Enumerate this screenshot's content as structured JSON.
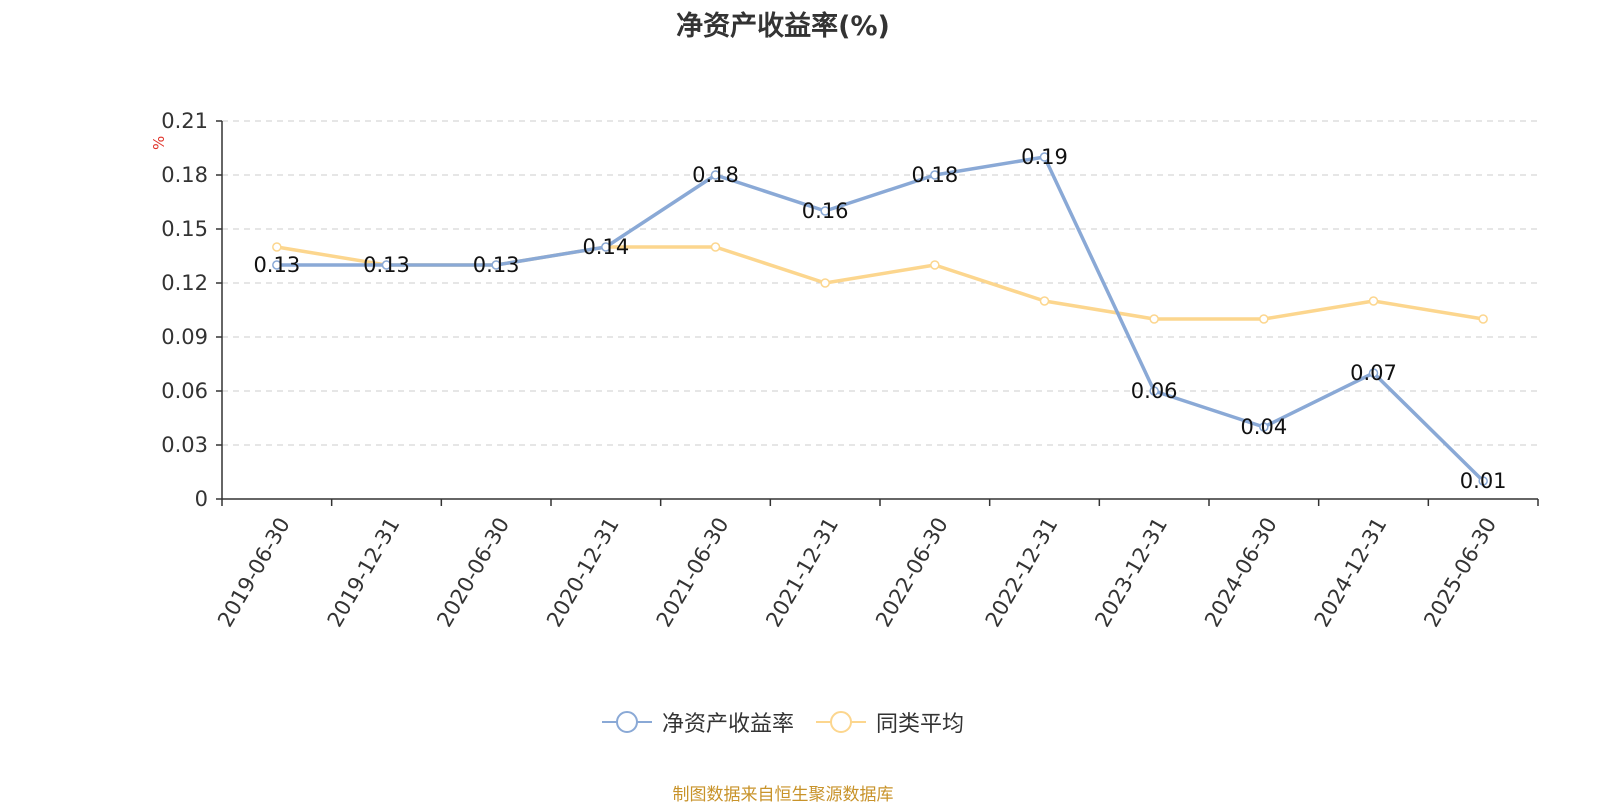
{
  "chart_data": {
    "type": "line",
    "title": "净资产收益率(%)",
    "ylabel": "%",
    "categories": [
      "2019-06-30",
      "2019-12-31",
      "2020-06-30",
      "2020-12-31",
      "2021-06-30",
      "2021-12-31",
      "2022-06-30",
      "2022-12-31",
      "2023-12-31",
      "2024-06-30",
      "2024-12-31",
      "2025-06-30"
    ],
    "ylim": [
      0,
      0.21
    ],
    "yticks": [
      "0",
      "0.03",
      "0.06",
      "0.09",
      "0.12",
      "0.15",
      "0.18",
      "0.21"
    ],
    "grid": true,
    "legend_position": "bottom",
    "series": [
      {
        "name": "净资产收益率",
        "color": "#8aa9d6",
        "values": [
          0.13,
          0.13,
          0.13,
          0.14,
          0.18,
          0.16,
          0.18,
          0.19,
          0.06,
          0.04,
          0.07,
          0.01
        ],
        "labels": [
          "0.13",
          "0.13",
          "0.13",
          "0.14",
          "0.18",
          "0.16",
          "0.18",
          "0.19",
          "0.06",
          "0.04",
          "0.07",
          "0.01"
        ]
      },
      {
        "name": "同类平均",
        "color": "#fcd68e",
        "values": [
          0.14,
          0.13,
          0.13,
          0.14,
          0.14,
          0.12,
          0.13,
          0.11,
          0.1,
          0.1,
          0.11,
          0.1
        ]
      }
    ],
    "source": "制图数据来自恒生聚源数据库"
  }
}
